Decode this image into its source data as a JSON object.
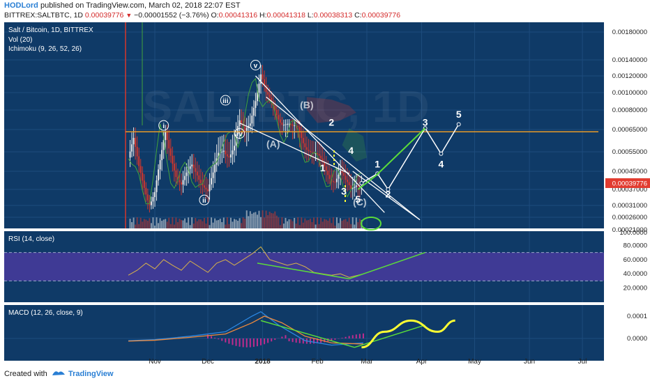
{
  "header": {
    "author": "HODLord",
    "published": "published on TradingView.com, March 02, 2018 22:07 EST",
    "symbol": "BITTREX:SALTBTC, 1D",
    "last": "0.00039776",
    "change": "−0.00001552 (−3.76%)",
    "o_label": "O:",
    "o_value": "0.00041316",
    "h_label": "H:",
    "h_value": "0.00041318",
    "l_label": "L:",
    "l_value": "0.00038313",
    "c_label": "C:",
    "c_value": "0.00039776"
  },
  "footer": {
    "created": "Created with",
    "brand": "TradingView"
  },
  "colors": {
    "background": "#0f3a67",
    "grid": "#1d4c7d",
    "up": "#e8e8e8",
    "down": "#d6362b",
    "ichimoku": "#42a33c",
    "orange_line": "#e89a28",
    "annotation": "#ffffff",
    "green_line": "#5bdc3a",
    "rsi_band": "#3f3a95",
    "macd_blue": "#2b86e0",
    "macd_orange": "#f08a3c",
    "macd_hist": "#c02c8e",
    "yellow": "#ffff33",
    "price_tag": "#e23c30"
  },
  "chart_data": [
    {
      "type": "candlestick",
      "panel": "main",
      "title": "Salt / Bitcoin, 1D, BITTREX",
      "indicators": [
        "Vol (20)",
        "Ichimoku (9, 26, 52, 26)"
      ],
      "watermark": "SALTBTC, 1D",
      "x_ticks": [
        "Nov",
        "Dec",
        "2018",
        "Feb",
        "Mar",
        "Apr",
        "May",
        "Jun",
        "Jul"
      ],
      "x_tick_positions": [
        0,
        30,
        61,
        92,
        120,
        151,
        181,
        212,
        242
      ],
      "y_ticks": [
        "0.00180000",
        "0.00140000",
        "0.00120000",
        "0.00100000",
        "0.00080000",
        "0.00065000",
        "0.00055000",
        "0.00045000",
        "0.00037000",
        "0.00031000",
        "0.00026000",
        "0.00021000"
      ],
      "y_tick_values": [
        0.0018,
        0.0014,
        0.0012,
        0.001,
        0.0008,
        0.00065,
        0.00055,
        0.00045,
        0.00037,
        0.00031,
        0.00026,
        0.00021
      ],
      "current_price_label": "0.00039776",
      "current_price": 0.00039776,
      "horizontal_line": 0.00064,
      "close_path": [
        [
          -15,
          0.00052
        ],
        [
          -12,
          0.00058
        ],
        [
          -9,
          0.00046
        ],
        [
          -6,
          0.00039
        ],
        [
          -3,
          0.00033
        ],
        [
          0,
          0.00036
        ],
        [
          3,
          0.00048
        ],
        [
          6,
          0.00062
        ],
        [
          9,
          0.00055
        ],
        [
          12,
          0.00045
        ],
        [
          15,
          0.00039
        ],
        [
          18,
          0.00042
        ],
        [
          21,
          0.00047
        ],
        [
          24,
          0.00045
        ],
        [
          27,
          0.00041
        ],
        [
          30,
          0.00036
        ],
        [
          33,
          0.00042
        ],
        [
          36,
          0.00053
        ],
        [
          39,
          0.00058
        ],
        [
          42,
          0.00055
        ],
        [
          45,
          0.00057
        ],
        [
          48,
          0.00068
        ],
        [
          51,
          0.00063
        ],
        [
          54,
          0.00073
        ],
        [
          57,
          0.00095
        ],
        [
          60,
          0.0012
        ],
        [
          63,
          0.00095
        ],
        [
          66,
          0.00088
        ],
        [
          69,
          0.0008
        ],
        [
          72,
          0.00072
        ],
        [
          75,
          0.00068
        ],
        [
          78,
          0.00064
        ],
        [
          81,
          0.00066
        ],
        [
          84,
          0.00062
        ],
        [
          87,
          0.00058
        ],
        [
          90,
          0.00053
        ],
        [
          93,
          0.0005
        ],
        [
          96,
          0.00047
        ],
        [
          99,
          0.00044
        ],
        [
          102,
          0.00042
        ],
        [
          105,
          0.00044
        ],
        [
          108,
          0.00039
        ],
        [
          111,
          0.00037
        ],
        [
          114,
          0.00041
        ],
        [
          117,
          0.00039776
        ]
      ],
      "projection_white": [
        [
          117,
          0.00039776
        ],
        [
          126,
          0.00044
        ],
        [
          132,
          0.00037
        ],
        [
          153,
          0.00066
        ],
        [
          162,
          0.00054
        ],
        [
          172,
          0.00069
        ]
      ],
      "projection_green": [
        [
          115,
          0.00037
        ],
        [
          125,
          0.00043
        ],
        [
          153,
          0.00066
        ]
      ],
      "wave_labels": [
        {
          "text": "i",
          "x": 5,
          "y": 0.00066,
          "circled": true
        },
        {
          "text": "ii",
          "x": 28,
          "y": 0.00032,
          "circled": true
        },
        {
          "text": "iii",
          "x": 40,
          "y": 0.00088,
          "circled": true
        },
        {
          "text": "iv",
          "x": 48,
          "y": 0.00062,
          "circled": true
        },
        {
          "text": "v",
          "x": 57,
          "y": 0.0013,
          "circled": true
        },
        {
          "text": "(A)",
          "x": 67,
          "y": 0.00057,
          "circled": false
        },
        {
          "text": "(B)",
          "x": 86,
          "y": 0.00082,
          "circled": false
        },
        {
          "text": "(C)",
          "x": 116,
          "y": 0.00031,
          "circled": false
        },
        {
          "text": "1",
          "x": 95,
          "y": 0.00045,
          "circled": false
        },
        {
          "text": "2",
          "x": 100,
          "y": 0.00068,
          "circled": false
        },
        {
          "text": "3",
          "x": 107,
          "y": 0.00035,
          "circled": false
        },
        {
          "text": "4",
          "x": 111,
          "y": 0.00054,
          "circled": false
        },
        {
          "text": "5",
          "x": 115,
          "y": 0.00032,
          "circled": false
        },
        {
          "text": "1",
          "x": 126,
          "y": 0.00047,
          "circled": false
        },
        {
          "text": "2",
          "x": 132,
          "y": 0.00034,
          "circled": false
        },
        {
          "text": "3",
          "x": 153,
          "y": 0.00068,
          "circled": false
        },
        {
          "text": "4",
          "x": 162,
          "y": 0.00047,
          "circled": false
        },
        {
          "text": "5",
          "x": 172,
          "y": 0.00074,
          "circled": false
        }
      ]
    },
    {
      "type": "line",
      "panel": "rsi",
      "title": "RSI (14, close)",
      "y_ticks": [
        "100.0000",
        "80.0000",
        "60.0000",
        "40.0000",
        "20.0000"
      ],
      "y_tick_values": [
        100,
        80,
        60,
        40,
        20
      ],
      "band": [
        30,
        70
      ],
      "series": [
        {
          "values": [
            [
              -15,
              38
            ],
            [
              -10,
              45
            ],
            [
              -5,
              55
            ],
            [
              0,
              47
            ],
            [
              5,
              60
            ],
            [
              10,
              52
            ],
            [
              15,
              45
            ],
            [
              20,
              58
            ],
            [
              25,
              50
            ],
            [
              30,
              42
            ],
            [
              35,
              55
            ],
            [
              40,
              60
            ],
            [
              45,
              52
            ],
            [
              50,
              60
            ],
            [
              55,
              68
            ],
            [
              60,
              78
            ],
            [
              65,
              60
            ],
            [
              70,
              56
            ],
            [
              75,
              52
            ],
            [
              80,
              55
            ],
            [
              85,
              50
            ],
            [
              90,
              42
            ],
            [
              95,
              40
            ],
            [
              100,
              38
            ],
            [
              105,
              40
            ],
            [
              110,
              35
            ],
            [
              115,
              38
            ],
            [
              118,
              40
            ]
          ]
        }
      ],
      "trend_lines": [
        [
          [
            58,
            55
          ],
          [
            110,
            33
          ]
        ],
        [
          [
            110,
            33
          ],
          [
            153,
            70
          ]
        ]
      ]
    },
    {
      "type": "line",
      "panel": "macd",
      "title": "MACD (12, 26, close, 9)",
      "y_ticks": [
        "0.0001",
        "0.0000"
      ],
      "y_tick_values": [
        0.0001,
        0.0
      ],
      "series": [
        {
          "values": [
            [
              -15,
              -1e-05
            ],
            [
              0,
              -5e-06
            ],
            [
              20,
              1e-05
            ],
            [
              40,
              3e-05
            ],
            [
              55,
              0.0001
            ],
            [
              60,
              0.00012
            ],
            [
              70,
              6e-05
            ],
            [
              85,
              -1e-05
            ],
            [
              100,
              -3e-05
            ],
            [
              118,
              -2e-05
            ]
          ]
        },
        {
          "values": [
            [
              -15,
              -1.2e-05
            ],
            [
              0,
              -8e-06
            ],
            [
              20,
              5e-06
            ],
            [
              40,
              2e-05
            ],
            [
              55,
              7e-05
            ],
            [
              62,
              0.0001
            ],
            [
              72,
              7e-05
            ],
            [
              85,
              1e-05
            ],
            [
              100,
              -2e-05
            ],
            [
              118,
              -2.5e-05
            ]
          ]
        }
      ],
      "trend_lines": [
        [
          [
            60,
            8e-05
          ],
          [
            113,
            -4e-05
          ]
        ],
        [
          [
            113,
            -4e-05
          ],
          [
            153,
            6e-05
          ]
        ]
      ],
      "projection": [
        [
          117,
          -4e-05
        ],
        [
          130,
          3e-05
        ],
        [
          145,
          8e-05
        ],
        [
          160,
          3e-05
        ],
        [
          170,
          8e-05
        ]
      ]
    }
  ]
}
